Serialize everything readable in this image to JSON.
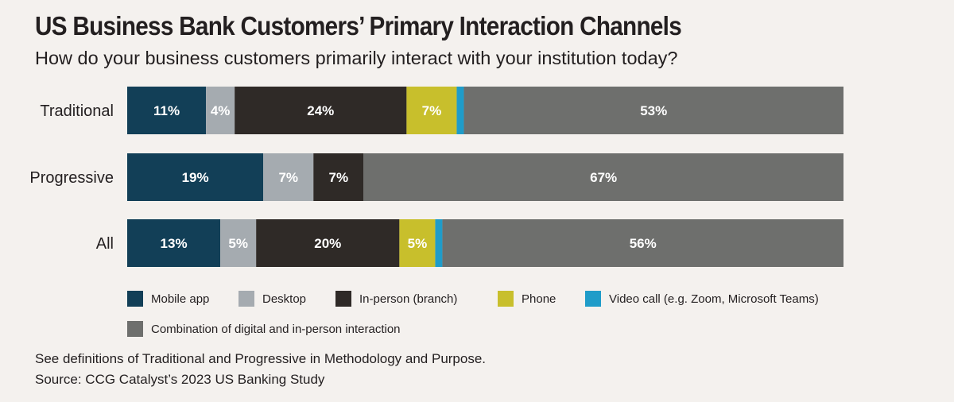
{
  "chart_data": {
    "type": "bar",
    "orientation": "horizontal",
    "stacked": true,
    "title": "US Business Bank Customers’ Primary Interaction Channels",
    "subtitle": "How do your business customers primarily interact with your institution today?",
    "categories": [
      "Traditional",
      "Progressive",
      "All"
    ],
    "series": [
      {
        "name": "Mobile app",
        "color": "#123f57",
        "values": [
          11,
          19,
          13
        ],
        "labels": [
          "11%",
          "19%",
          "13%"
        ],
        "label_color": "#ffffff"
      },
      {
        "name": "Desktop",
        "color": "#a5abb0",
        "values": [
          4,
          7,
          5
        ],
        "labels": [
          "4%",
          "7%",
          "5%"
        ],
        "label_color": "#ffffff"
      },
      {
        "name": "In-person (branch)",
        "color": "#2f2a27",
        "values": [
          24,
          7,
          20
        ],
        "labels": [
          "24%",
          "7%",
          "20%"
        ],
        "label_color": "#ffffff"
      },
      {
        "name": "Phone",
        "color": "#c8bf2c",
        "values": [
          7,
          0,
          5
        ],
        "labels": [
          "7%",
          "",
          "5%"
        ],
        "label_color": "#ffffff"
      },
      {
        "name": "Video call (e.g. Zoom, Microsoft Teams)",
        "color": "#1f9cc9",
        "values": [
          1,
          0,
          1
        ],
        "labels": [
          "",
          "",
          ""
        ],
        "label_color": "#ffffff"
      },
      {
        "name": "Combination of digital and in-person interaction",
        "color": "#6e6f6d",
        "values": [
          53,
          67,
          56
        ],
        "labels": [
          "53%",
          "67%",
          "56%"
        ],
        "label_color": "#ffffff"
      }
    ],
    "legend_position": "bottom",
    "grid": false
  },
  "footnotes": {
    "definitions": "See definitions of Traditional and Progressive in Methodology and Purpose.",
    "source": "Source: CCG Catalyst’s 2023 US Banking Study"
  }
}
